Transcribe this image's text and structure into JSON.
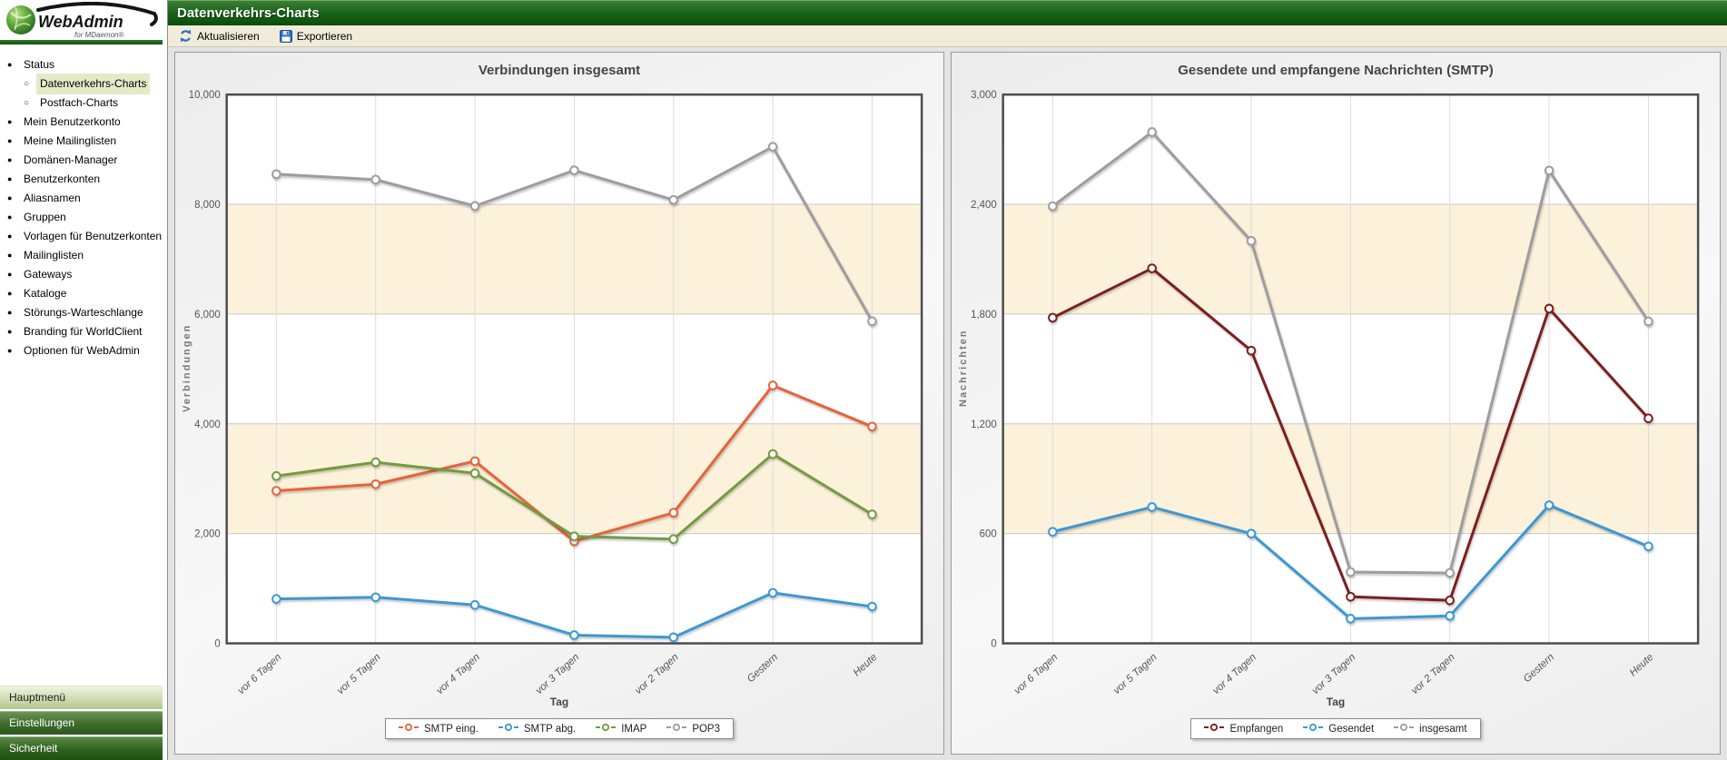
{
  "app": {
    "logo_title": "WebAdmin",
    "logo_subtitle": "for MDaemon®"
  },
  "header": {
    "title": "Datenverkehrs-Charts"
  },
  "toolbar": {
    "refresh_label": "Aktualisieren",
    "export_label": "Exportieren"
  },
  "sidebar": {
    "items": [
      {
        "label": "Status",
        "level": 0,
        "selected": false
      },
      {
        "label": "Datenverkehrs-Charts",
        "level": 1,
        "selected": true
      },
      {
        "label": "Postfach-Charts",
        "level": 1,
        "selected": false
      },
      {
        "label": "Mein Benutzerkonto",
        "level": 0,
        "selected": false
      },
      {
        "label": "Meine Mailinglisten",
        "level": 0,
        "selected": false
      },
      {
        "label": "Domänen-Manager",
        "level": 0,
        "selected": false
      },
      {
        "label": "Benutzerkonten",
        "level": 0,
        "selected": false
      },
      {
        "label": "Aliasnamen",
        "level": 0,
        "selected": false
      },
      {
        "label": "Gruppen",
        "level": 0,
        "selected": false
      },
      {
        "label": "Vorlagen für Benutzerkonten",
        "level": 0,
        "selected": false
      },
      {
        "label": "Mailinglisten",
        "level": 0,
        "selected": false
      },
      {
        "label": "Gateways",
        "level": 0,
        "selected": false
      },
      {
        "label": "Kataloge",
        "level": 0,
        "selected": false
      },
      {
        "label": "Störungs-Warteschlange",
        "level": 0,
        "selected": false
      },
      {
        "label": "Branding für WorldClient",
        "level": 0,
        "selected": false
      },
      {
        "label": "Optionen für WebAdmin",
        "level": 0,
        "selected": false
      }
    ],
    "bottom_buttons": [
      {
        "label": "Hauptmenü",
        "style": "light"
      },
      {
        "label": "Einstellungen",
        "style": "dark"
      },
      {
        "label": "Sicherheit",
        "style": "darker"
      }
    ]
  },
  "chart_data": [
    {
      "type": "line",
      "title": "Verbindungen insgesamt",
      "xlabel": "Tag",
      "ylabel": "Verbindungen",
      "categories": [
        "vor 6 Tagen",
        "vor 5 Tagen",
        "vor 4 Tagen",
        "vor 3 Tagen",
        "vor 2 Tagen",
        "Gestern",
        "Heute"
      ],
      "series": [
        {
          "name": "SMTP eing.",
          "color": "#e8623b",
          "values": [
            2780,
            2900,
            3320,
            1860,
            2380,
            4700,
            3950
          ]
        },
        {
          "name": "SMTP abg.",
          "color": "#3d98d3",
          "values": [
            810,
            840,
            700,
            150,
            110,
            920,
            670
          ]
        },
        {
          "name": "IMAP",
          "color": "#739b41",
          "values": [
            3050,
            3300,
            3100,
            1950,
            1900,
            3450,
            2350
          ]
        },
        {
          "name": "POP3",
          "color": "#9d9d9d",
          "values": [
            8550,
            8450,
            7970,
            8620,
            8080,
            9050,
            5870
          ]
        }
      ],
      "ylim": [
        0,
        10000
      ],
      "yticks": [
        0,
        2000,
        4000,
        6000,
        8000,
        10000
      ],
      "band_color": "#fcf1da",
      "grid": true,
      "legend_position": "bottom"
    },
    {
      "type": "line",
      "title": "Gesendete und empfangene Nachrichten (SMTP)",
      "xlabel": "Tag",
      "ylabel": "Nachrichten",
      "categories": [
        "vor 6 Tagen",
        "vor 5 Tagen",
        "vor 4 Tagen",
        "vor 3 Tagen",
        "vor 2 Tagen",
        "Gestern",
        "Heute"
      ],
      "series": [
        {
          "name": "Empfangen",
          "color": "#7c1f1f",
          "values": [
            1780,
            2050,
            1600,
            255,
            235,
            1830,
            1230
          ]
        },
        {
          "name": "Gesendet",
          "color": "#3d98d3",
          "values": [
            610,
            745,
            600,
            135,
            150,
            755,
            530
          ]
        },
        {
          "name": "insgesamt",
          "color": "#9d9d9d",
          "values": [
            2390,
            2795,
            2200,
            390,
            385,
            2585,
            1760
          ]
        }
      ],
      "ylim": [
        0,
        3000
      ],
      "yticks": [
        0,
        600,
        1200,
        1800,
        2400,
        3000
      ],
      "band_color": "#fcf1da",
      "grid": true,
      "legend_position": "bottom"
    }
  ]
}
